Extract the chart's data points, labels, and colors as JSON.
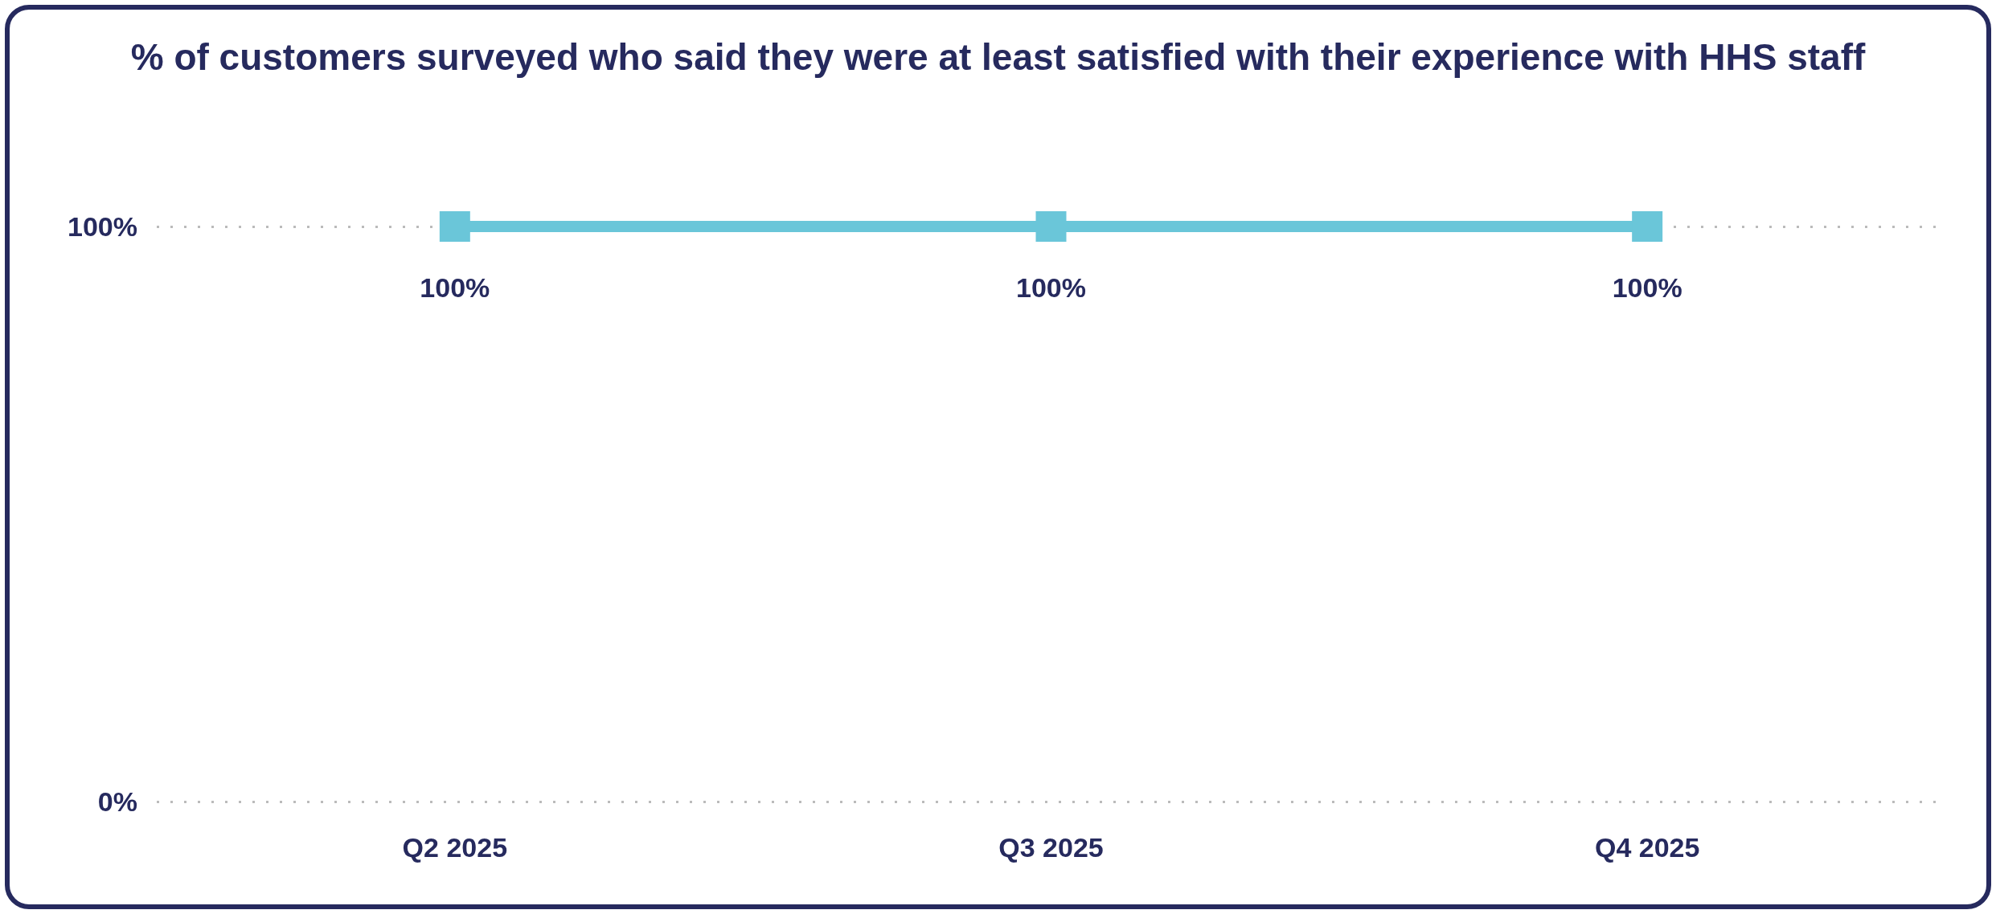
{
  "chart_data": {
    "type": "line",
    "title": "% of customers surveyed who said they were at least satisfied with their experience with HHS staff",
    "categories": [
      "Q2 2025",
      "Q3 2025",
      "Q4 2025"
    ],
    "values": [
      100,
      100,
      100
    ],
    "color": "#6ac6d9",
    "value_labels": [
      "100%",
      "100%",
      "100%"
    ],
    "ylim": [
      0,
      100
    ],
    "yticks": [
      {
        "value": 0,
        "label": "0%"
      },
      {
        "value": 100,
        "label": "100%"
      }
    ],
    "grid": "y",
    "marker": "square",
    "line_style": "solid"
  }
}
